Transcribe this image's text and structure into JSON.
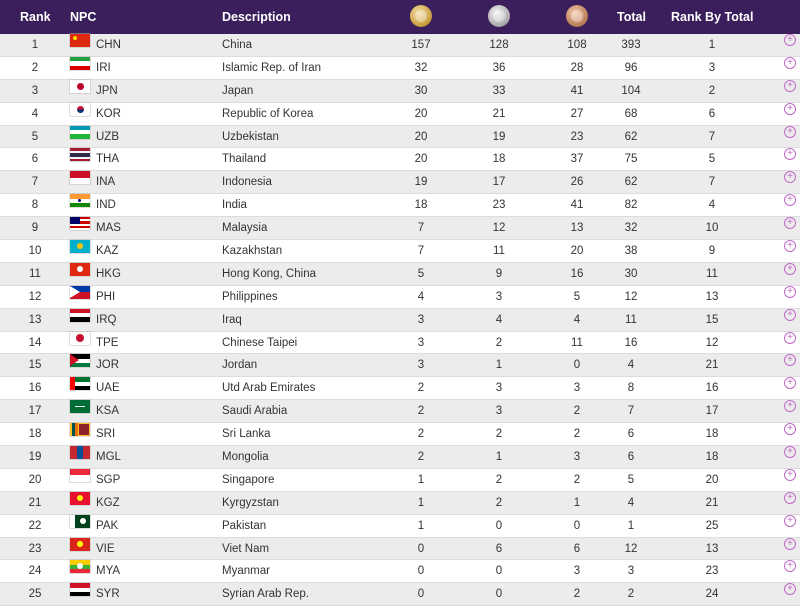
{
  "header": {
    "rank": "Rank",
    "npc": "NPC",
    "description": "Description",
    "total": "Total",
    "rank_by_total": "Rank By Total",
    "medal_icons": [
      "gold-medal-icon",
      "silver-medal-icon",
      "bronze-medal-icon"
    ]
  },
  "rows": [
    {
      "rank": "1",
      "code": "CHN",
      "desc": "China",
      "gold": "157",
      "silver": "128",
      "bronze": "108",
      "total": "393",
      "rbt": "1"
    },
    {
      "rank": "2",
      "code": "IRI",
      "desc": "Islamic Rep. of Iran",
      "gold": "32",
      "silver": "36",
      "bronze": "28",
      "total": "96",
      "rbt": "3"
    },
    {
      "rank": "3",
      "code": "JPN",
      "desc": "Japan",
      "gold": "30",
      "silver": "33",
      "bronze": "41",
      "total": "104",
      "rbt": "2"
    },
    {
      "rank": "4",
      "code": "KOR",
      "desc": "Republic of Korea",
      "gold": "20",
      "silver": "21",
      "bronze": "27",
      "total": "68",
      "rbt": "6"
    },
    {
      "rank": "5",
      "code": "UZB",
      "desc": "Uzbekistan",
      "gold": "20",
      "silver": "19",
      "bronze": "23",
      "total": "62",
      "rbt": "7"
    },
    {
      "rank": "6",
      "code": "THA",
      "desc": "Thailand",
      "gold": "20",
      "silver": "18",
      "bronze": "37",
      "total": "75",
      "rbt": "5"
    },
    {
      "rank": "7",
      "code": "INA",
      "desc": "Indonesia",
      "gold": "19",
      "silver": "17",
      "bronze": "26",
      "total": "62",
      "rbt": "7"
    },
    {
      "rank": "8",
      "code": "IND",
      "desc": "India",
      "gold": "18",
      "silver": "23",
      "bronze": "41",
      "total": "82",
      "rbt": "4"
    },
    {
      "rank": "9",
      "code": "MAS",
      "desc": "Malaysia",
      "gold": "7",
      "silver": "12",
      "bronze": "13",
      "total": "32",
      "rbt": "10"
    },
    {
      "rank": "10",
      "code": "KAZ",
      "desc": "Kazakhstan",
      "gold": "7",
      "silver": "11",
      "bronze": "20",
      "total": "38",
      "rbt": "9"
    },
    {
      "rank": "11",
      "code": "HKG",
      "desc": "Hong Kong, China",
      "gold": "5",
      "silver": "9",
      "bronze": "16",
      "total": "30",
      "rbt": "11"
    },
    {
      "rank": "12",
      "code": "PHI",
      "desc": "Philippines",
      "gold": "4",
      "silver": "3",
      "bronze": "5",
      "total": "12",
      "rbt": "13"
    },
    {
      "rank": "13",
      "code": "IRQ",
      "desc": "Iraq",
      "gold": "3",
      "silver": "4",
      "bronze": "4",
      "total": "11",
      "rbt": "15"
    },
    {
      "rank": "14",
      "code": "TPE",
      "desc": "Chinese Taipei",
      "gold": "3",
      "silver": "2",
      "bronze": "11",
      "total": "16",
      "rbt": "12"
    },
    {
      "rank": "15",
      "code": "JOR",
      "desc": "Jordan",
      "gold": "3",
      "silver": "1",
      "bronze": "0",
      "total": "4",
      "rbt": "21"
    },
    {
      "rank": "16",
      "code": "UAE",
      "desc": "Utd Arab Emirates",
      "gold": "2",
      "silver": "3",
      "bronze": "3",
      "total": "8",
      "rbt": "16"
    },
    {
      "rank": "17",
      "code": "KSA",
      "desc": "Saudi Arabia",
      "gold": "2",
      "silver": "3",
      "bronze": "2",
      "total": "7",
      "rbt": "17"
    },
    {
      "rank": "18",
      "code": "SRI",
      "desc": "Sri Lanka",
      "gold": "2",
      "silver": "2",
      "bronze": "2",
      "total": "6",
      "rbt": "18"
    },
    {
      "rank": "19",
      "code": "MGL",
      "desc": "Mongolia",
      "gold": "2",
      "silver": "1",
      "bronze": "3",
      "total": "6",
      "rbt": "18"
    },
    {
      "rank": "20",
      "code": "SGP",
      "desc": "Singapore",
      "gold": "1",
      "silver": "2",
      "bronze": "2",
      "total": "5",
      "rbt": "20"
    },
    {
      "rank": "21",
      "code": "KGZ",
      "desc": "Kyrgyzstan",
      "gold": "1",
      "silver": "2",
      "bronze": "1",
      "total": "4",
      "rbt": "21"
    },
    {
      "rank": "22",
      "code": "PAK",
      "desc": "Pakistan",
      "gold": "1",
      "silver": "0",
      "bronze": "0",
      "total": "1",
      "rbt": "25"
    },
    {
      "rank": "23",
      "code": "VIE",
      "desc": "Viet Nam",
      "gold": "0",
      "silver": "6",
      "bronze": "6",
      "total": "12",
      "rbt": "13"
    },
    {
      "rank": "24",
      "code": "MYA",
      "desc": "Myanmar",
      "gold": "0",
      "silver": "0",
      "bronze": "3",
      "total": "3",
      "rbt": "23"
    },
    {
      "rank": "25",
      "code": "SYR",
      "desc": "Syrian Arab Rep.",
      "gold": "0",
      "silver": "0",
      "bronze": "2",
      "total": "2",
      "rbt": "24"
    }
  ],
  "expand_icon": "+",
  "colors": {
    "header_bg": "#3a1f5c",
    "row_alt": "#ececec",
    "expand_accent": "#c06ac8"
  }
}
